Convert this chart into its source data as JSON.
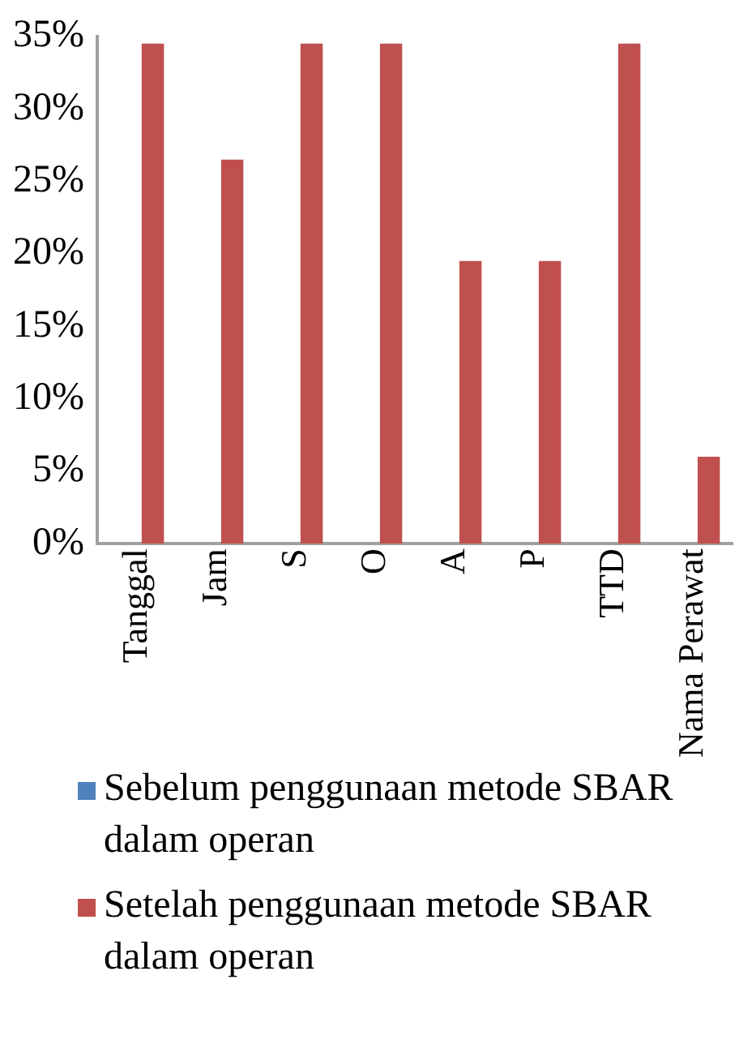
{
  "chart_data": {
    "type": "bar",
    "categories": [
      "Tanggal",
      "Jam",
      "S",
      "O",
      "A",
      "P",
      "TTD",
      "Nama Perawat"
    ],
    "series": [
      {
        "name": "Sebelum penggunaan metode SBAR dalam operan",
        "color": "#4f81bd",
        "values": [
          0,
          0,
          0,
          0,
          0,
          0,
          0,
          0
        ]
      },
      {
        "name": "Setelah penggunaan metode SBAR dalam operan",
        "color": "#c0504d",
        "values": [
          34.5,
          26.5,
          34.5,
          34.5,
          19.5,
          19.5,
          34.5,
          6
        ]
      }
    ],
    "ylim": [
      0,
      35
    ],
    "yticks": [
      {
        "value": 0,
        "label": "0%"
      },
      {
        "value": 5,
        "label": "5%"
      },
      {
        "value": 10,
        "label": "10%"
      },
      {
        "value": 15,
        "label": "15%"
      },
      {
        "value": 20,
        "label": "20%"
      },
      {
        "value": 25,
        "label": "25%"
      },
      {
        "value": 30,
        "label": "30%"
      },
      {
        "value": 35,
        "label": "35%"
      }
    ],
    "grid": false,
    "legend": "bottom"
  }
}
